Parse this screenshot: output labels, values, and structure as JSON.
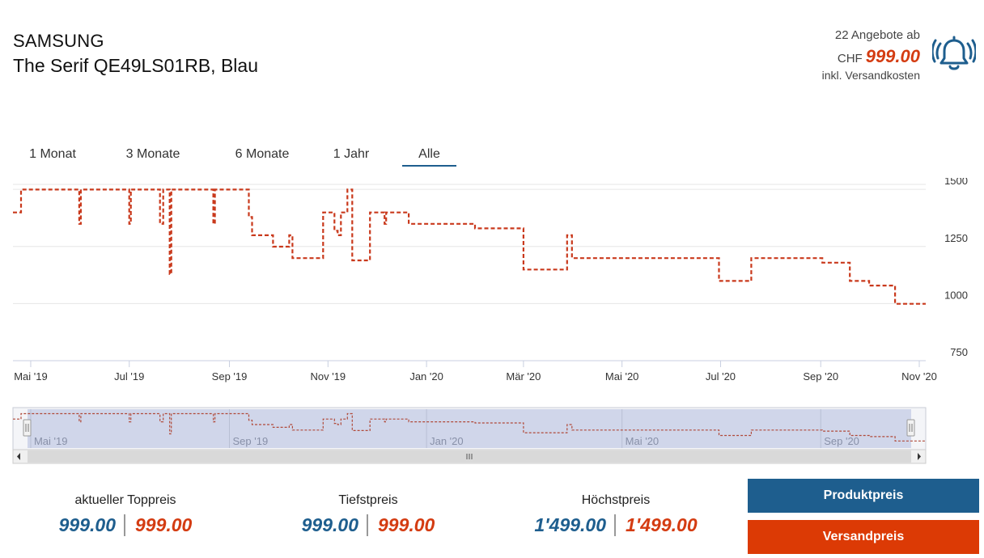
{
  "header": {
    "brand": "SAMSUNG",
    "product": "The Serif QE49LS01RB, Blau",
    "offers_text": "22 Angebote ab",
    "currency": "CHF",
    "best_price": "999.00",
    "shipping_note": "inkl. Versandkosten",
    "icon": "price-alarm-bell-icon"
  },
  "tabs": [
    {
      "label": "1 Monat"
    },
    {
      "label": "3 Monate"
    },
    {
      "label": "6 Monate"
    },
    {
      "label": "1 Jahr"
    },
    {
      "label": "Alle",
      "active": true
    }
  ],
  "chart_data": {
    "type": "line",
    "series_color": "#c9391c",
    "x_tick_labels": [
      "Mai '19",
      "Jul '19",
      "Sep '19",
      "Nov '19",
      "Jan '20",
      "Mär '20",
      "Mai '20",
      "Jul '20",
      "Sep '20",
      "Nov '20"
    ],
    "x_tick_dates": [
      "2019-05-01",
      "2019-07-01",
      "2019-09-01",
      "2019-11-01",
      "2020-01-01",
      "2020-03-01",
      "2020-05-01",
      "2020-07-01",
      "2020-09-01",
      "2020-11-01"
    ],
    "y_ticks": [
      750,
      1000,
      1250,
      1500
    ],
    "ylim": [
      750,
      1550
    ],
    "xlim": [
      "2019-04-20",
      "2020-11-05"
    ],
    "grid": true,
    "navigator_labels": [
      "Mai '19",
      "Sep '19",
      "Jan '20",
      "Mai '20",
      "Sep '20"
    ],
    "navigator_dates": [
      "2019-05-01",
      "2019-09-01",
      "2020-01-01",
      "2020-05-01",
      "2020-09-01"
    ],
    "points": [
      [
        "2019-04-20",
        1399
      ],
      [
        "2019-04-25",
        1399
      ],
      [
        "2019-04-25",
        1499
      ],
      [
        "2019-05-31",
        1499
      ],
      [
        "2019-05-31",
        1349
      ],
      [
        "2019-06-01",
        1349
      ],
      [
        "2019-06-01",
        1499
      ],
      [
        "2019-07-01",
        1499
      ],
      [
        "2019-07-01",
        1349
      ],
      [
        "2019-07-02",
        1349
      ],
      [
        "2019-07-02",
        1499
      ],
      [
        "2019-07-20",
        1499
      ],
      [
        "2019-07-20",
        1349
      ],
      [
        "2019-07-22",
        1349
      ],
      [
        "2019-07-22",
        1499
      ],
      [
        "2019-07-26",
        1499
      ],
      [
        "2019-07-26",
        1129
      ],
      [
        "2019-07-27",
        1129
      ],
      [
        "2019-07-27",
        1499
      ],
      [
        "2019-08-22",
        1499
      ],
      [
        "2019-08-22",
        1349
      ],
      [
        "2019-08-23",
        1349
      ],
      [
        "2019-08-23",
        1499
      ],
      [
        "2019-09-13",
        1499
      ],
      [
        "2019-09-13",
        1379
      ],
      [
        "2019-09-15",
        1379
      ],
      [
        "2019-09-15",
        1299
      ],
      [
        "2019-09-28",
        1299
      ],
      [
        "2019-09-28",
        1249
      ],
      [
        "2019-10-08",
        1249
      ],
      [
        "2019-10-08",
        1299
      ],
      [
        "2019-10-10",
        1299
      ],
      [
        "2019-10-10",
        1199
      ],
      [
        "2019-10-29",
        1199
      ],
      [
        "2019-10-29",
        1399
      ],
      [
        "2019-11-05",
        1399
      ],
      [
        "2019-11-05",
        1319
      ],
      [
        "2019-11-07",
        1319
      ],
      [
        "2019-11-07",
        1299
      ],
      [
        "2019-11-09",
        1299
      ],
      [
        "2019-11-09",
        1399
      ],
      [
        "2019-11-13",
        1399
      ],
      [
        "2019-11-13",
        1499
      ],
      [
        "2019-11-16",
        1499
      ],
      [
        "2019-11-16",
        1189
      ],
      [
        "2019-11-27",
        1189
      ],
      [
        "2019-11-27",
        1399
      ],
      [
        "2019-12-06",
        1399
      ],
      [
        "2019-12-06",
        1349
      ],
      [
        "2019-12-07",
        1349
      ],
      [
        "2019-12-07",
        1399
      ],
      [
        "2019-12-21",
        1399
      ],
      [
        "2019-12-21",
        1349
      ],
      [
        "2020-01-31",
        1349
      ],
      [
        "2020-01-31",
        1329
      ],
      [
        "2020-03-01",
        1329
      ],
      [
        "2020-03-01",
        1149
      ],
      [
        "2020-03-28",
        1149
      ],
      [
        "2020-03-28",
        1299
      ],
      [
        "2020-03-31",
        1299
      ],
      [
        "2020-03-31",
        1199
      ],
      [
        "2020-06-30",
        1199
      ],
      [
        "2020-06-30",
        1099
      ],
      [
        "2020-07-20",
        1099
      ],
      [
        "2020-07-20",
        1199
      ],
      [
        "2020-09-02",
        1199
      ],
      [
        "2020-09-02",
        1179
      ],
      [
        "2020-09-19",
        1179
      ],
      [
        "2020-09-19",
        1099
      ],
      [
        "2020-10-01",
        1099
      ],
      [
        "2020-10-01",
        1079
      ],
      [
        "2020-10-17",
        1079
      ],
      [
        "2020-10-17",
        999
      ],
      [
        "2020-11-05",
        999
      ]
    ]
  },
  "summary": [
    {
      "label": "aktueller Toppreis",
      "product_price": "999.00",
      "shipping_price": "999.00"
    },
    {
      "label": "Tiefstpreis",
      "product_price": "999.00",
      "shipping_price": "999.00"
    },
    {
      "label": "Höchstpreis",
      "product_price": "1'499.00",
      "shipping_price": "1'499.00"
    }
  ],
  "buttons": {
    "product_price": "Produktpreis",
    "shipping_price": "Versandpreis"
  },
  "colors": {
    "accent_blue": "#1e5e8e",
    "accent_red": "#d43c12",
    "navigator_fill": "#ccd3e8"
  }
}
